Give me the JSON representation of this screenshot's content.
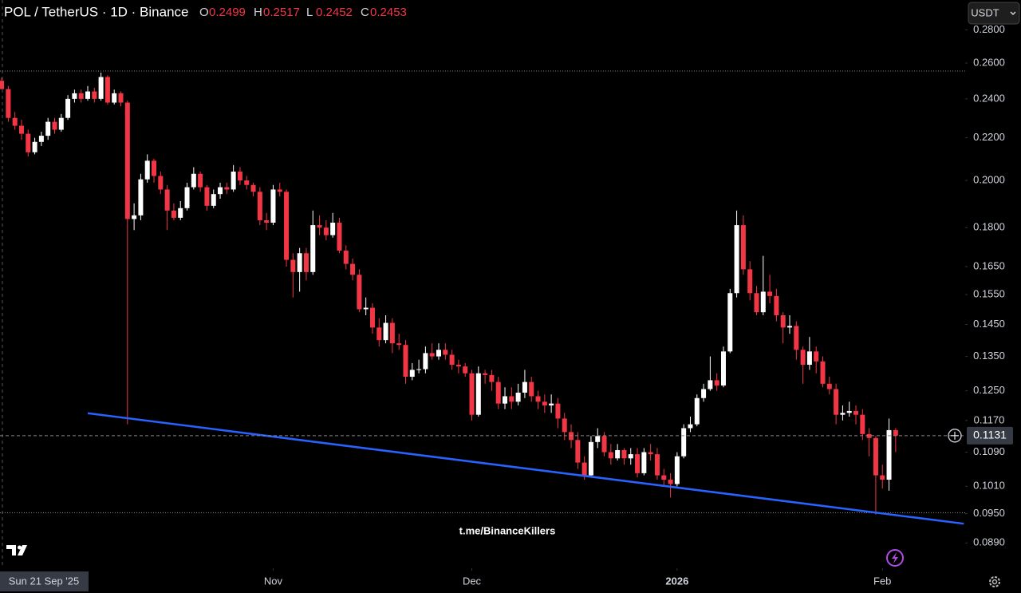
{
  "chart_data": {
    "type": "candlestick",
    "title": "POL / TetherUS · 1D · Binance",
    "ohlc_letters": [
      "O",
      "H",
      "L",
      "C"
    ],
    "currency": "USDT",
    "watermark": "t.me/BinanceKillers",
    "crosshair_date": "Sun 21 Sep '25",
    "up_color": "#ffffff",
    "down_color": "#f23645",
    "log_scale": true,
    "ylim": [
      0.0844,
      0.2993
    ],
    "xlim": [
      -0.25,
      145.5
    ],
    "yticks": [
      {
        "value": 0.28,
        "label": "0.2800"
      },
      {
        "value": 0.26,
        "label": "0.2600"
      },
      {
        "value": 0.24,
        "label": "0.2400"
      },
      {
        "value": 0.22,
        "label": "0.2200"
      },
      {
        "value": 0.2,
        "label": "0.2000"
      },
      {
        "value": 0.18,
        "label": "0.1800"
      },
      {
        "value": 0.165,
        "label": "0.1650"
      },
      {
        "value": 0.155,
        "label": "0.1550"
      },
      {
        "value": 0.145,
        "label": "0.1450"
      },
      {
        "value": 0.135,
        "label": "0.1350"
      },
      {
        "value": 0.125,
        "label": "0.1250"
      },
      {
        "value": 0.117,
        "label": "0.1170"
      },
      {
        "value": 0.109,
        "label": "0.1090"
      },
      {
        "value": 0.101,
        "label": "0.1010"
      },
      {
        "value": 0.095,
        "label": "0.0950"
      },
      {
        "value": 0.089,
        "label": "0.0890"
      }
    ],
    "xticks": [
      {
        "value": 41,
        "label": "Nov"
      },
      {
        "value": 71,
        "label": "Dec"
      },
      {
        "value": 102,
        "label": "2026"
      },
      {
        "value": 133,
        "label": "Feb"
      }
    ],
    "horizontal_lines": [
      0.2554,
      0.0952
    ],
    "trendline": {
      "x": [
        13.0,
        145.3
      ],
      "y": [
        0.1189,
        0.0929
      ],
      "color": "#2962ff"
    },
    "open": [
      0.2499,
      0.2453,
      0.23,
      0.226,
      0.222,
      0.213,
      0.218,
      0.221,
      0.228,
      0.224,
      0.23,
      0.24,
      0.243,
      0.24,
      0.244,
      0.24,
      0.252,
      0.238,
      0.243,
      0.238,
      0.1835,
      0.185,
      0.2005,
      0.209,
      0.202,
      0.196,
      0.187,
      0.184,
      0.188,
      0.197,
      0.203,
      0.197,
      0.189,
      0.194,
      0.197,
      0.196,
      0.204,
      0.2,
      0.198,
      0.195,
      0.183,
      0.182,
      0.196,
      0.195,
      0.1675,
      0.163,
      0.17,
      0.163,
      0.181,
      0.18,
      0.177,
      0.182,
      0.171,
      0.166,
      0.162,
      0.15,
      0.1505,
      0.144,
      0.14,
      0.1455,
      0.139,
      0.1385,
      0.129,
      0.131,
      0.1312,
      0.136,
      0.135,
      0.137,
      0.1355,
      0.1325,
      0.132,
      0.13,
      0.1185,
      0.13,
      0.1295,
      0.1275,
      0.1215,
      0.1235,
      0.122,
      0.1245,
      0.1275,
      0.1235,
      0.122,
      0.121,
      0.1215,
      0.1175,
      0.114,
      0.112,
      0.1065,
      0.1035,
      0.1115,
      0.113,
      0.109,
      0.1075,
      0.1095,
      0.1075,
      0.1085,
      0.104,
      0.109,
      0.1085,
      0.1035,
      0.1025,
      0.1015,
      0.108,
      0.115,
      0.116,
      0.123,
      0.1255,
      0.128,
      0.1265,
      0.1365,
      0.1555,
      0.181,
      0.164,
      0.1555,
      0.149,
      0.156,
      0.1545,
      0.148,
      0.144,
      0.1445,
      0.137,
      0.1325,
      0.1365,
      0.1335,
      0.127,
      0.1255,
      0.1185,
      0.119,
      0.1195,
      0.1185,
      0.1135,
      0.1125,
      0.1035,
      0.1025,
      0.1145
    ],
    "high": [
      0.2517,
      0.247,
      0.233,
      0.229,
      0.224,
      0.22,
      0.223,
      0.23,
      0.23,
      0.232,
      0.242,
      0.245,
      0.245,
      0.247,
      0.246,
      0.2545,
      0.253,
      0.245,
      0.244,
      0.239,
      0.19,
      0.203,
      0.212,
      0.21,
      0.204,
      0.198,
      0.19,
      0.191,
      0.199,
      0.206,
      0.204,
      0.198,
      0.196,
      0.199,
      0.199,
      0.207,
      0.206,
      0.202,
      0.199,
      0.197,
      0.186,
      0.198,
      0.199,
      0.196,
      0.17,
      0.172,
      0.172,
      0.187,
      0.185,
      0.183,
      0.186,
      0.184,
      0.173,
      0.168,
      0.164,
      0.154,
      0.152,
      0.147,
      0.148,
      0.147,
      0.142,
      0.14,
      0.133,
      0.134,
      0.138,
      0.139,
      0.139,
      0.139,
      0.137,
      0.134,
      0.133,
      0.131,
      0.132,
      0.131,
      0.131,
      0.129,
      0.126,
      0.126,
      0.127,
      0.131,
      0.129,
      0.125,
      0.124,
      0.124,
      0.123,
      0.119,
      0.116,
      0.114,
      0.108,
      0.113,
      0.115,
      0.114,
      0.111,
      0.111,
      0.11,
      0.11,
      0.11,
      0.11,
      0.111,
      0.11,
      0.105,
      0.104,
      0.109,
      0.116,
      0.118,
      0.124,
      0.127,
      0.135,
      0.13,
      0.138,
      0.157,
      0.187,
      0.185,
      0.167,
      0.158,
      0.169,
      0.162,
      0.157,
      0.149,
      0.148,
      0.146,
      0.138,
      0.141,
      0.138,
      0.135,
      0.129,
      0.127,
      0.121,
      0.122,
      0.121,
      0.12,
      0.115,
      0.113,
      0.106,
      0.1175,
      0.115
    ],
    "low": [
      0.2452,
      0.228,
      0.224,
      0.219,
      0.211,
      0.212,
      0.216,
      0.219,
      0.222,
      0.223,
      0.229,
      0.238,
      0.238,
      0.239,
      0.238,
      0.239,
      0.237,
      0.237,
      0.236,
      0.116,
      0.179,
      0.183,
      0.199,
      0.199,
      0.194,
      0.179,
      0.183,
      0.183,
      0.187,
      0.196,
      0.195,
      0.187,
      0.188,
      0.192,
      0.194,
      0.195,
      0.198,
      0.196,
      0.193,
      0.181,
      0.179,
      0.181,
      0.193,
      0.165,
      0.154,
      0.156,
      0.16,
      0.162,
      0.177,
      0.175,
      0.176,
      0.17,
      0.164,
      0.16,
      0.149,
      0.148,
      0.142,
      0.138,
      0.139,
      0.136,
      0.137,
      0.127,
      0.128,
      0.13,
      0.13,
      0.134,
      0.134,
      0.134,
      0.131,
      0.13,
      0.129,
      0.117,
      0.118,
      0.127,
      0.125,
      0.12,
      0.12,
      0.12,
      0.121,
      0.123,
      0.122,
      0.12,
      0.119,
      0.119,
      0.115,
      0.112,
      0.11,
      0.105,
      0.1025,
      0.103,
      0.11,
      0.108,
      0.106,
      0.107,
      0.106,
      0.106,
      0.103,
      0.1035,
      0.107,
      0.1025,
      0.101,
      0.0985,
      0.101,
      0.1075,
      0.114,
      0.1155,
      0.122,
      0.125,
      0.125,
      0.126,
      0.136,
      0.154,
      0.162,
      0.153,
      0.148,
      0.148,
      0.152,
      0.146,
      0.139,
      0.142,
      0.134,
      0.127,
      0.131,
      0.13,
      0.126,
      0.124,
      0.116,
      0.117,
      0.118,
      0.116,
      0.112,
      0.108,
      0.0948,
      0.1005,
      0.1,
      0.109
    ],
    "close": [
      0.2453,
      0.23,
      0.226,
      0.222,
      0.213,
      0.218,
      0.221,
      0.228,
      0.224,
      0.23,
      0.24,
      0.243,
      0.24,
      0.244,
      0.24,
      0.252,
      0.238,
      0.243,
      0.238,
      0.1835,
      0.185,
      0.2005,
      0.209,
      0.202,
      0.196,
      0.187,
      0.184,
      0.188,
      0.197,
      0.203,
      0.197,
      0.189,
      0.194,
      0.197,
      0.196,
      0.204,
      0.2,
      0.198,
      0.195,
      0.183,
      0.182,
      0.196,
      0.195,
      0.1675,
      0.163,
      0.17,
      0.163,
      0.181,
      0.18,
      0.177,
      0.182,
      0.171,
      0.166,
      0.162,
      0.15,
      0.1505,
      0.144,
      0.14,
      0.1455,
      0.139,
      0.1385,
      0.129,
      0.131,
      0.1312,
      0.136,
      0.135,
      0.137,
      0.1355,
      0.1325,
      0.132,
      0.13,
      0.1185,
      0.13,
      0.1295,
      0.1275,
      0.1215,
      0.1235,
      0.122,
      0.1245,
      0.1275,
      0.1235,
      0.122,
      0.121,
      0.1215,
      0.1175,
      0.114,
      0.112,
      0.1065,
      0.1035,
      0.1115,
      0.113,
      0.109,
      0.1075,
      0.1095,
      0.1075,
      0.1085,
      0.104,
      0.109,
      0.1085,
      0.1035,
      0.1025,
      0.1015,
      0.108,
      0.115,
      0.116,
      0.123,
      0.1255,
      0.128,
      0.1265,
      0.1365,
      0.1555,
      0.181,
      0.164,
      0.1555,
      0.149,
      0.156,
      0.1545,
      0.148,
      0.144,
      0.1445,
      0.137,
      0.1325,
      0.1365,
      0.1335,
      0.127,
      0.1255,
      0.1185,
      0.119,
      0.1195,
      0.1185,
      0.1135,
      0.1125,
      0.1035,
      0.1025,
      0.1145,
      0.1131
    ]
  }
}
